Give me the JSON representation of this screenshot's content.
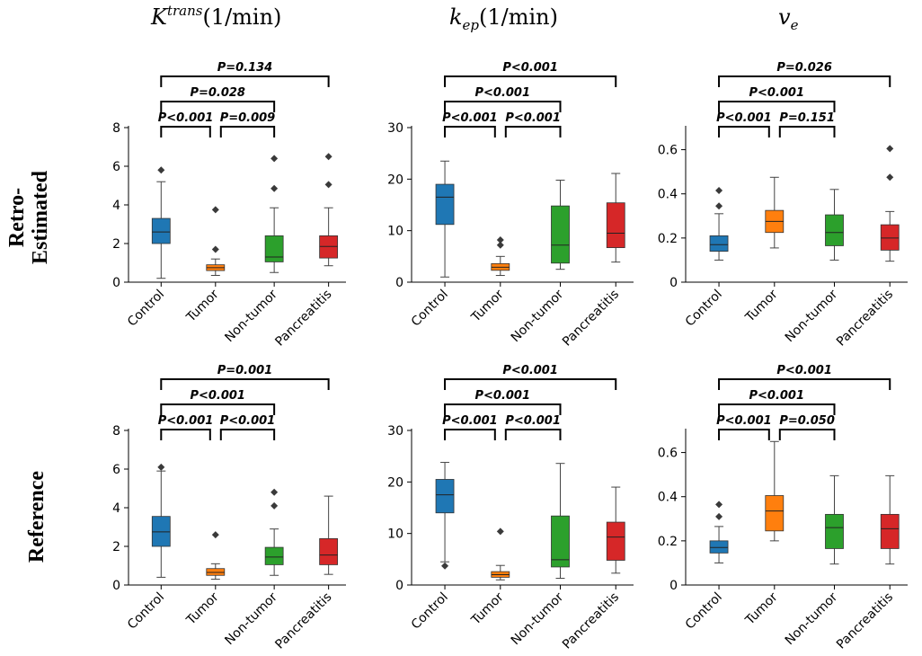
{
  "figure": {
    "column_titles": [
      {
        "base": "K",
        "super": "trans",
        "unit": "(1/min)"
      },
      {
        "base": "k",
        "sub": "ep",
        "unit": "(1/min)"
      },
      {
        "base": "v",
        "sub": "e",
        "unit": ""
      }
    ],
    "row_labels": [
      [
        "Retro-",
        "Estimated"
      ],
      [
        "Reference"
      ]
    ]
  },
  "colors": {
    "Control": "#1f77b4",
    "Tumor": "#ff7f0e",
    "Non-tumor": "#2ca02c",
    "Pancreatitis": "#d62728"
  },
  "chart_data": [
    {
      "type": "box",
      "row": "Retro-Estimated",
      "metric": "Ktrans (1/min)",
      "categories": [
        "Control",
        "Tumor",
        "Non-tumor",
        "Pancreatitis"
      ],
      "ylim": [
        0,
        8
      ],
      "yticks": [
        0,
        2,
        4,
        6,
        8
      ],
      "boxes": [
        {
          "q1": 2.0,
          "median": 2.6,
          "q3": 3.3,
          "whisker_low": 0.2,
          "whisker_high": 5.2,
          "outliers": [
            5.8
          ]
        },
        {
          "q1": 0.6,
          "median": 0.75,
          "q3": 0.9,
          "whisker_low": 0.35,
          "whisker_high": 1.2,
          "outliers": [
            1.7,
            3.75
          ]
        },
        {
          "q1": 1.05,
          "median": 1.3,
          "q3": 2.4,
          "whisker_low": 0.5,
          "whisker_high": 3.85,
          "outliers": [
            4.85,
            6.4
          ]
        },
        {
          "q1": 1.25,
          "median": 1.85,
          "q3": 2.4,
          "whisker_low": 0.85,
          "whisker_high": 3.85,
          "outliers": [
            5.05,
            6.5
          ]
        }
      ],
      "comparisons": [
        {
          "from": 0,
          "to": 3,
          "label": "P=0.134"
        },
        {
          "from": 0,
          "to": 2,
          "label": "P=0.028"
        },
        {
          "from": 0,
          "to": 1,
          "label": "P<0.001"
        },
        {
          "from": 1,
          "to": 2,
          "label": "P=0.009"
        }
      ]
    },
    {
      "type": "box",
      "row": "Retro-Estimated",
      "metric": "kep (1/min)",
      "categories": [
        "Control",
        "Tumor",
        "Non-tumor",
        "Pancreatitis"
      ],
      "ylim": [
        0,
        30
      ],
      "yticks": [
        0,
        10,
        20,
        30
      ],
      "boxes": [
        {
          "q1": 11.2,
          "median": 16.5,
          "q3": 19.0,
          "whisker_low": 1.0,
          "whisker_high": 23.5,
          "outliers": []
        },
        {
          "q1": 2.3,
          "median": 2.9,
          "q3": 3.6,
          "whisker_low": 1.3,
          "whisker_high": 5.0,
          "outliers": [
            7.2,
            8.2
          ]
        },
        {
          "q1": 3.7,
          "median": 7.2,
          "q3": 14.8,
          "whisker_low": 2.5,
          "whisker_high": 19.8,
          "outliers": []
        },
        {
          "q1": 6.7,
          "median": 9.5,
          "q3": 15.4,
          "whisker_low": 3.9,
          "whisker_high": 21.1,
          "outliers": []
        }
      ],
      "comparisons": [
        {
          "from": 0,
          "to": 3,
          "label": "P<0.001"
        },
        {
          "from": 0,
          "to": 2,
          "label": "P<0.001"
        },
        {
          "from": 0,
          "to": 1,
          "label": "P<0.001"
        },
        {
          "from": 1,
          "to": 2,
          "label": "P<0.001"
        }
      ]
    },
    {
      "type": "box",
      "row": "Retro-Estimated",
      "metric": "ve",
      "categories": [
        "Control",
        "Tumor",
        "Non-tumor",
        "Pancreatitis"
      ],
      "ylim": [
        0,
        0.7
      ],
      "yticks": [
        0,
        0.2,
        0.4,
        0.6
      ],
      "boxes": [
        {
          "q1": 0.14,
          "median": 0.17,
          "q3": 0.21,
          "whisker_low": 0.1,
          "whisker_high": 0.31,
          "outliers": [
            0.345,
            0.415
          ]
        },
        {
          "q1": 0.225,
          "median": 0.275,
          "q3": 0.325,
          "whisker_low": 0.155,
          "whisker_high": 0.475,
          "outliers": []
        },
        {
          "q1": 0.165,
          "median": 0.225,
          "q3": 0.305,
          "whisker_low": 0.1,
          "whisker_high": 0.42,
          "outliers": []
        },
        {
          "q1": 0.145,
          "median": 0.2,
          "q3": 0.26,
          "whisker_low": 0.095,
          "whisker_high": 0.32,
          "outliers": [
            0.475,
            0.605
          ]
        }
      ],
      "comparisons": [
        {
          "from": 0,
          "to": 3,
          "label": "P=0.026"
        },
        {
          "from": 0,
          "to": 2,
          "label": "P<0.001"
        },
        {
          "from": 0,
          "to": 1,
          "label": "P<0.001"
        },
        {
          "from": 1,
          "to": 2,
          "label": "P=0.151"
        }
      ]
    },
    {
      "type": "box",
      "row": "Reference",
      "metric": "Ktrans (1/min)",
      "categories": [
        "Control",
        "Tumor",
        "Non-tumor",
        "Pancreatitis"
      ],
      "ylim": [
        0,
        8
      ],
      "yticks": [
        0,
        2,
        4,
        6,
        8
      ],
      "boxes": [
        {
          "q1": 2.0,
          "median": 2.75,
          "q3": 3.55,
          "whisker_low": 0.4,
          "whisker_high": 5.9,
          "outliers": [
            6.1
          ]
        },
        {
          "q1": 0.5,
          "median": 0.65,
          "q3": 0.85,
          "whisker_low": 0.3,
          "whisker_high": 1.1,
          "outliers": [
            2.6
          ]
        },
        {
          "q1": 1.05,
          "median": 1.45,
          "q3": 1.95,
          "whisker_low": 0.5,
          "whisker_high": 2.9,
          "outliers": [
            4.1,
            4.8
          ]
        },
        {
          "q1": 1.05,
          "median": 1.55,
          "q3": 2.4,
          "whisker_low": 0.55,
          "whisker_high": 4.6,
          "outliers": []
        }
      ],
      "comparisons": [
        {
          "from": 0,
          "to": 3,
          "label": "P=0.001"
        },
        {
          "from": 0,
          "to": 2,
          "label": "P<0.001"
        },
        {
          "from": 0,
          "to": 1,
          "label": "P<0.001"
        },
        {
          "from": 1,
          "to": 2,
          "label": "P<0.001"
        }
      ]
    },
    {
      "type": "box",
      "row": "Reference",
      "metric": "kep (1/min)",
      "categories": [
        "Control",
        "Tumor",
        "Non-tumor",
        "Pancreatitis"
      ],
      "ylim": [
        0,
        30
      ],
      "yticks": [
        0,
        10,
        20,
        30
      ],
      "boxes": [
        {
          "q1": 14.0,
          "median": 17.5,
          "q3": 20.5,
          "whisker_low": 4.5,
          "whisker_high": 23.8,
          "outliers": [
            3.7
          ]
        },
        {
          "q1": 1.5,
          "median": 2.0,
          "q3": 2.6,
          "whisker_low": 1.0,
          "whisker_high": 3.8,
          "outliers": [
            10.4
          ]
        },
        {
          "q1": 3.5,
          "median": 4.9,
          "q3": 13.4,
          "whisker_low": 1.3,
          "whisker_high": 23.6,
          "outliers": []
        },
        {
          "q1": 4.8,
          "median": 9.3,
          "q3": 12.2,
          "whisker_low": 2.3,
          "whisker_high": 19.0,
          "outliers": []
        }
      ],
      "comparisons": [
        {
          "from": 0,
          "to": 3,
          "label": "P<0.001"
        },
        {
          "from": 0,
          "to": 2,
          "label": "P<0.001"
        },
        {
          "from": 0,
          "to": 1,
          "label": "P<0.001"
        },
        {
          "from": 1,
          "to": 2,
          "label": "P<0.001"
        }
      ]
    },
    {
      "type": "box",
      "row": "Reference",
      "metric": "ve",
      "categories": [
        "Control",
        "Tumor",
        "Non-tumor",
        "Pancreatitis"
      ],
      "ylim": [
        0,
        0.7
      ],
      "yticks": [
        0,
        0.2,
        0.4,
        0.6
      ],
      "boxes": [
        {
          "q1": 0.145,
          "median": 0.17,
          "q3": 0.2,
          "whisker_low": 0.1,
          "whisker_high": 0.265,
          "outliers": [
            0.31,
            0.365
          ]
        },
        {
          "q1": 0.245,
          "median": 0.335,
          "q3": 0.405,
          "whisker_low": 0.2,
          "whisker_high": 0.65,
          "outliers": []
        },
        {
          "q1": 0.165,
          "median": 0.26,
          "q3": 0.32,
          "whisker_low": 0.095,
          "whisker_high": 0.495,
          "outliers": []
        },
        {
          "q1": 0.165,
          "median": 0.255,
          "q3": 0.32,
          "whisker_low": 0.095,
          "whisker_high": 0.495,
          "outliers": []
        }
      ],
      "comparisons": [
        {
          "from": 0,
          "to": 3,
          "label": "P<0.001"
        },
        {
          "from": 0,
          "to": 2,
          "label": "P<0.001"
        },
        {
          "from": 0,
          "to": 1,
          "label": "P<0.001"
        },
        {
          "from": 1,
          "to": 2,
          "label": "P=0.050"
        }
      ]
    }
  ]
}
